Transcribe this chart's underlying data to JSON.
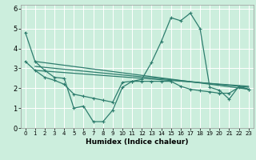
{
  "xlabel": "Humidex (Indice chaleur)",
  "background_color": "#cceedd",
  "grid_color": "#ffffff",
  "line_color": "#2e7d6e",
  "xlim": [
    -0.5,
    23.5
  ],
  "ylim": [
    0,
    6.2
  ],
  "yticks": [
    0,
    1,
    2,
    3,
    4,
    5,
    6
  ],
  "xticks": [
    0,
    1,
    2,
    3,
    4,
    5,
    6,
    7,
    8,
    9,
    10,
    11,
    12,
    13,
    14,
    15,
    16,
    17,
    18,
    19,
    20,
    21,
    22,
    23
  ],
  "series1_x": [
    0,
    1,
    2,
    3,
    4,
    5,
    6,
    7,
    8,
    9,
    10,
    11,
    12,
    13,
    14,
    15,
    16,
    17,
    18,
    19,
    20,
    21,
    22,
    23
  ],
  "series1_y": [
    4.8,
    3.35,
    2.9,
    2.55,
    2.5,
    1.0,
    1.1,
    0.32,
    0.32,
    0.9,
    2.05,
    2.35,
    2.45,
    3.3,
    4.35,
    5.55,
    5.4,
    5.78,
    5.0,
    2.05,
    1.9,
    1.45,
    2.1,
    1.95
  ],
  "series2_x": [
    0,
    1,
    2,
    3,
    4,
    5,
    6,
    7,
    8,
    9,
    10,
    11,
    12,
    13,
    14,
    15,
    16,
    17,
    18,
    19,
    20,
    21,
    22,
    23
  ],
  "series2_y": [
    3.35,
    2.9,
    2.55,
    2.4,
    2.2,
    1.7,
    1.6,
    1.5,
    1.4,
    1.3,
    2.3,
    2.35,
    2.35,
    2.35,
    2.35,
    2.35,
    2.1,
    1.95,
    1.88,
    1.82,
    1.75,
    1.75,
    2.05,
    1.95
  ],
  "line3_x": [
    1,
    23
  ],
  "line3_y": [
    3.35,
    1.95
  ],
  "line4_x": [
    1,
    23
  ],
  "line4_y": [
    3.1,
    2.05
  ],
  "line5_x": [
    1,
    23
  ],
  "line5_y": [
    2.9,
    2.1
  ]
}
